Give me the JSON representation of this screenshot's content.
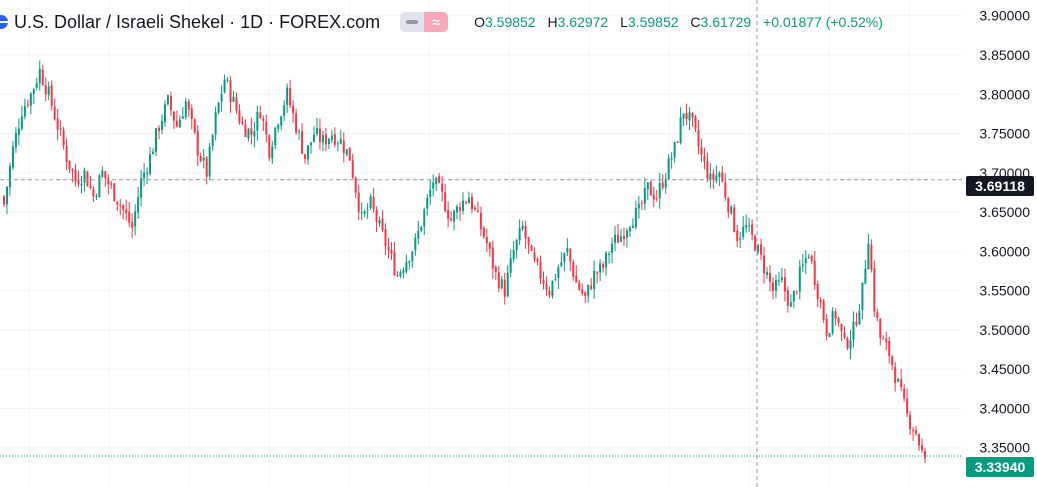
{
  "header": {
    "symbol_title": "U.S. Dollar / Israeli Shekel · 1D · FOREX.com",
    "ohlc": {
      "open_label": "O",
      "open": "3.59852",
      "high_label": "H",
      "high": "3.62972",
      "low_label": "L",
      "low": "3.59852",
      "close_label": "C",
      "close": "3.61729",
      "change": "+0.01877 (+0.52%)"
    }
  },
  "price_axis": {
    "crosshair_price": "3.69118",
    "last_price": "3.33940"
  },
  "colors": {
    "up": "#089981",
    "down": "#f23645",
    "grid": "#f0f3fa",
    "axis_text": "#131722",
    "crosshair": "#9598a1"
  },
  "chart_data": {
    "type": "candlestick",
    "title": "",
    "xlabel": "",
    "ylabel": "",
    "ylim": [
      3.3,
      3.92
    ],
    "y_ticks": [
      "3.90000",
      "3.85000",
      "3.80000",
      "3.75000",
      "3.70000",
      "3.65000",
      "3.60000",
      "3.55000",
      "3.50000",
      "3.45000",
      "3.40000",
      "3.35000"
    ],
    "grid": true,
    "crosshair_y": 3.69118,
    "last_price": 3.3394,
    "close_path": [
      [
        0,
        3.66
      ],
      [
        3,
        3.73
      ],
      [
        6,
        3.78
      ],
      [
        9,
        3.8
      ],
      [
        12,
        3.83
      ],
      [
        15,
        3.8
      ],
      [
        18,
        3.76
      ],
      [
        21,
        3.72
      ],
      [
        24,
        3.69
      ],
      [
        27,
        3.7
      ],
      [
        30,
        3.67
      ],
      [
        33,
        3.7
      ],
      [
        36,
        3.68
      ],
      [
        39,
        3.66
      ],
      [
        43,
        3.63
      ],
      [
        46,
        3.69
      ],
      [
        49,
        3.72
      ],
      [
        52,
        3.76
      ],
      [
        55,
        3.79
      ],
      [
        58,
        3.76
      ],
      [
        61,
        3.79
      ],
      [
        65,
        3.73
      ],
      [
        68,
        3.7
      ],
      [
        71,
        3.77
      ],
      [
        74,
        3.82
      ],
      [
        77,
        3.79
      ],
      [
        80,
        3.76
      ],
      [
        83,
        3.75
      ],
      [
        86,
        3.78
      ],
      [
        89,
        3.73
      ],
      [
        92,
        3.77
      ],
      [
        95,
        3.8
      ],
      [
        98,
        3.76
      ],
      [
        101,
        3.72
      ],
      [
        104,
        3.75
      ],
      [
        107,
        3.74
      ],
      [
        110,
        3.75
      ],
      [
        113,
        3.74
      ],
      [
        116,
        3.72
      ],
      [
        118,
        3.68
      ],
      [
        120,
        3.64
      ],
      [
        123,
        3.66
      ],
      [
        126,
        3.63
      ],
      [
        129,
        3.6
      ],
      [
        132,
        3.57
      ],
      [
        135,
        3.59
      ],
      [
        138,
        3.61
      ],
      [
        141,
        3.65
      ],
      [
        144,
        3.69
      ],
      [
        147,
        3.67
      ],
      [
        150,
        3.64
      ],
      [
        153,
        3.66
      ],
      [
        156,
        3.67
      ],
      [
        159,
        3.64
      ],
      [
        162,
        3.61
      ],
      [
        165,
        3.57
      ],
      [
        168,
        3.55
      ],
      [
        171,
        3.6
      ],
      [
        174,
        3.63
      ],
      [
        177,
        3.59
      ],
      [
        180,
        3.57
      ],
      [
        183,
        3.55
      ],
      [
        186,
        3.58
      ],
      [
        189,
        3.6
      ],
      [
        192,
        3.56
      ],
      [
        195,
        3.54
      ],
      [
        198,
        3.57
      ],
      [
        201,
        3.58
      ],
      [
        204,
        3.61
      ],
      [
        207,
        3.62
      ],
      [
        210,
        3.64
      ],
      [
        213,
        3.65
      ],
      [
        216,
        3.68
      ],
      [
        219,
        3.67
      ],
      [
        222,
        3.7
      ],
      [
        225,
        3.73
      ],
      [
        228,
        3.78
      ],
      [
        231,
        3.76
      ],
      [
        234,
        3.72
      ],
      [
        237,
        3.69
      ],
      [
        240,
        3.7
      ],
      [
        243,
        3.66
      ],
      [
        246,
        3.62
      ],
      [
        249,
        3.63
      ],
      [
        252,
        3.61
      ],
      [
        255,
        3.58
      ],
      [
        258,
        3.55
      ],
      [
        261,
        3.56
      ],
      [
        264,
        3.53
      ],
      [
        267,
        3.57
      ],
      [
        270,
        3.6
      ],
      [
        273,
        3.55
      ],
      [
        276,
        3.5
      ],
      [
        279,
        3.52
      ],
      [
        282,
        3.48
      ],
      [
        285,
        3.5
      ],
      [
        288,
        3.55
      ],
      [
        290,
        3.62
      ],
      [
        292,
        3.53
      ],
      [
        294,
        3.49
      ],
      [
        297,
        3.47
      ],
      [
        300,
        3.43
      ],
      [
        303,
        3.39
      ],
      [
        306,
        3.37
      ],
      [
        309,
        3.33
      ]
    ]
  }
}
